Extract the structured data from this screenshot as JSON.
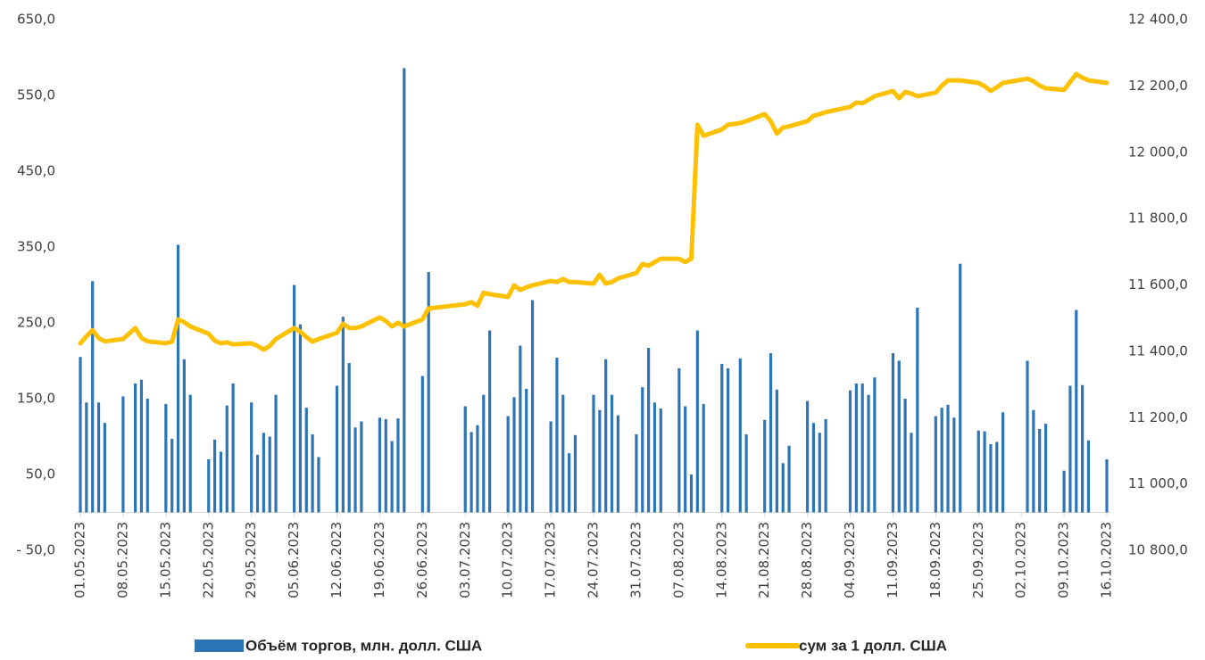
{
  "chart_data": {
    "type": "bar-line",
    "x": [
      "2023-05-01",
      "2023-05-02",
      "2023-05-03",
      "2023-05-04",
      "2023-05-05",
      "2023-05-08",
      "2023-05-10",
      "2023-05-11",
      "2023-05-12",
      "2023-05-15",
      "2023-05-16",
      "2023-05-17",
      "2023-05-18",
      "2023-05-19",
      "2023-05-22",
      "2023-05-23",
      "2023-05-24",
      "2023-05-25",
      "2023-05-26",
      "2023-05-29",
      "2023-05-30",
      "2023-05-31",
      "2023-06-01",
      "2023-06-02",
      "2023-06-05",
      "2023-06-06",
      "2023-06-07",
      "2023-06-08",
      "2023-06-09",
      "2023-06-12",
      "2023-06-13",
      "2023-06-14",
      "2023-06-15",
      "2023-06-16",
      "2023-06-19",
      "2023-06-20",
      "2023-06-21",
      "2023-06-22",
      "2023-06-23",
      "2023-06-26",
      "2023-06-27",
      "2023-07-03",
      "2023-07-04",
      "2023-07-05",
      "2023-07-06",
      "2023-07-07",
      "2023-07-10",
      "2023-07-11",
      "2023-07-12",
      "2023-07-13",
      "2023-07-14",
      "2023-07-17",
      "2023-07-18",
      "2023-07-19",
      "2023-07-20",
      "2023-07-21",
      "2023-07-24",
      "2023-07-25",
      "2023-07-26",
      "2023-07-27",
      "2023-07-28",
      "2023-07-31",
      "2023-08-01",
      "2023-08-02",
      "2023-08-03",
      "2023-08-04",
      "2023-08-07",
      "2023-08-08",
      "2023-08-09",
      "2023-08-10",
      "2023-08-11",
      "2023-08-14",
      "2023-08-15",
      "2023-08-17",
      "2023-08-18",
      "2023-08-21",
      "2023-08-22",
      "2023-08-23",
      "2023-08-24",
      "2023-08-25",
      "2023-08-28",
      "2023-08-29",
      "2023-08-30",
      "2023-08-31",
      "2023-09-04",
      "2023-09-05",
      "2023-09-06",
      "2023-09-07",
      "2023-09-08",
      "2023-09-11",
      "2023-09-12",
      "2023-09-13",
      "2023-09-14",
      "2023-09-15",
      "2023-09-18",
      "2023-09-19",
      "2023-09-20",
      "2023-09-21",
      "2023-09-22",
      "2023-09-25",
      "2023-09-26",
      "2023-09-27",
      "2023-09-28",
      "2023-09-29",
      "2023-10-03",
      "2023-10-04",
      "2023-10-05",
      "2023-10-06",
      "2023-10-09",
      "2023-10-10",
      "2023-10-11",
      "2023-10-12",
      "2023-10-13",
      "2023-10-16"
    ],
    "series": [
      {
        "name": "Объём торгов, млн. долл. США",
        "color": "#2e75b6",
        "kind": "bar",
        "axis": "y",
        "values": [
          205,
          145,
          305,
          145,
          118,
          153,
          170,
          175,
          150,
          143,
          97,
          353,
          202,
          155,
          70,
          96,
          80,
          141,
          170,
          145,
          76,
          105,
          100,
          155,
          300,
          248,
          138,
          103,
          73,
          167,
          258,
          197,
          112,
          120,
          125,
          123,
          94,
          124,
          586,
          180,
          317,
          140,
          106,
          115,
          155,
          240,
          127,
          152,
          220,
          163,
          280,
          120,
          204,
          155,
          78,
          102,
          155,
          135,
          202,
          155,
          128,
          103,
          165,
          217,
          145,
          137,
          190,
          140,
          50,
          240,
          143,
          196,
          190,
          203,
          103,
          122,
          210,
          162,
          65,
          88,
          147,
          118,
          105,
          123,
          161,
          170,
          170,
          155,
          178,
          210,
          200,
          150,
          105,
          270,
          127,
          138,
          142,
          125,
          328,
          108,
          107,
          90,
          93,
          132,
          200,
          135,
          110,
          117,
          55,
          167,
          267,
          168,
          95,
          70
        ]
      },
      {
        "name": "сум за 1 долл. США",
        "color": "#ffc000",
        "kind": "line",
        "axis": "y2",
        "values": [
          11424,
          11445,
          11464,
          11440,
          11430,
          11437,
          11470,
          11440,
          11430,
          11424,
          11429,
          11496,
          11488,
          11475,
          11453,
          11432,
          11424,
          11427,
          11421,
          11424,
          11416,
          11405,
          11416,
          11437,
          11470,
          11459,
          11443,
          11429,
          11437,
          11456,
          11483,
          11470,
          11470,
          11475,
          11502,
          11491,
          11475,
          11486,
          11475,
          11496,
          11529,
          11542,
          11548,
          11537,
          11577,
          11572,
          11564,
          11599,
          11585,
          11593,
          11599,
          11612,
          11609,
          11618,
          11609,
          11609,
          11604,
          11631,
          11604,
          11609,
          11620,
          11636,
          11663,
          11658,
          11669,
          11679,
          11679,
          11669,
          11679,
          12083,
          12050,
          12069,
          12083,
          12088,
          12094,
          12115,
          12094,
          12056,
          12075,
          12078,
          12094,
          12110,
          12115,
          12121,
          12137,
          12150,
          12148,
          12158,
          12169,
          12185,
          12163,
          12182,
          12177,
          12169,
          12180,
          12201,
          12217,
          12217,
          12217,
          12209,
          12199,
          12185,
          12196,
          12209,
          12222,
          12214,
          12201,
          12193,
          12188,
          12212,
          12236,
          12225,
          12217,
          12209
        ]
      }
    ],
    "xlim": [
      "2023-05-01",
      "2023-10-16"
    ],
    "xticks": [
      {
        "value": "2023-05-01",
        "label": "01.05.2023"
      },
      {
        "value": "2023-05-08",
        "label": "08.05.2023"
      },
      {
        "value": "2023-05-15",
        "label": "15.05.2023"
      },
      {
        "value": "2023-05-22",
        "label": "22.05.2023"
      },
      {
        "value": "2023-05-29",
        "label": "29.05.2023"
      },
      {
        "value": "2023-06-05",
        "label": "05.06.2023"
      },
      {
        "value": "2023-06-12",
        "label": "12.06.2023"
      },
      {
        "value": "2023-06-19",
        "label": "19.06.2023"
      },
      {
        "value": "2023-06-26",
        "label": "26.06.2023"
      },
      {
        "value": "2023-07-03",
        "label": "03.07.2023"
      },
      {
        "value": "2023-07-10",
        "label": "10.07.2023"
      },
      {
        "value": "2023-07-17",
        "label": "17.07.2023"
      },
      {
        "value": "2023-07-24",
        "label": "24.07.2023"
      },
      {
        "value": "2023-07-31",
        "label": "31.07.2023"
      },
      {
        "value": "2023-08-07",
        "label": "07.08.2023"
      },
      {
        "value": "2023-08-14",
        "label": "14.08.2023"
      },
      {
        "value": "2023-08-21",
        "label": "21.08.2023"
      },
      {
        "value": "2023-08-28",
        "label": "28.08.2023"
      },
      {
        "value": "2023-09-04",
        "label": "04.09.2023"
      },
      {
        "value": "2023-09-11",
        "label": "11.09.2023"
      },
      {
        "value": "2023-09-18",
        "label": "18.09.2023"
      },
      {
        "value": "2023-09-25",
        "label": "25.09.2023"
      },
      {
        "value": "2023-10-02",
        "label": "02.10.2023"
      },
      {
        "value": "2023-10-09",
        "label": "09.10.2023"
      },
      {
        "value": "2023-10-16",
        "label": "16.10.2023"
      }
    ],
    "ylim": [
      -50,
      650
    ],
    "yticks": [
      {
        "value": -50,
        "label": "- 50,0"
      },
      {
        "value": 50,
        "label": "50,0"
      },
      {
        "value": 150,
        "label": "150,0"
      },
      {
        "value": 250,
        "label": "250,0"
      },
      {
        "value": 350,
        "label": "350,0"
      },
      {
        "value": 450,
        "label": "450,0"
      },
      {
        "value": 550,
        "label": "550,0"
      },
      {
        "value": 650,
        "label": "650,0"
      }
    ],
    "y2lim": [
      10800,
      12400
    ],
    "y2ticks": [
      {
        "value": 10800,
        "label": "10 800,0"
      },
      {
        "value": 11000,
        "label": "11 000,0"
      },
      {
        "value": 11200,
        "label": "11 200,0"
      },
      {
        "value": 11400,
        "label": "11 400,0"
      },
      {
        "value": 11600,
        "label": "11 600,0"
      },
      {
        "value": 11800,
        "label": "11 800,0"
      },
      {
        "value": 12000,
        "label": "12 000,0"
      },
      {
        "value": 12200,
        "label": "12 200,0"
      },
      {
        "value": 12400,
        "label": "12 400,0"
      }
    ],
    "grid": false,
    "legend": "bottom"
  }
}
